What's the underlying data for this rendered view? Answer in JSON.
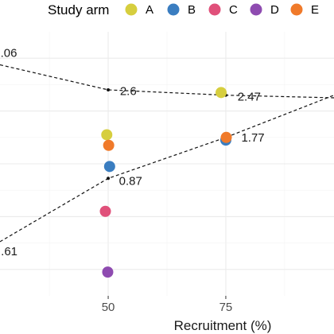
{
  "chart_data": {
    "type": "scatter",
    "xlabel": "Recruitment (%)",
    "x_ticks": [
      "50",
      "75"
    ],
    "x_tick_values": [
      50,
      75
    ],
    "xlim": [
      27,
      98
    ],
    "ylim": [
      0,
      10
    ],
    "grid": true,
    "legend": {
      "title": "Study arm",
      "placement": "top",
      "entries": [
        {
          "label": "A",
          "color": "#D6CE3E"
        },
        {
          "label": "B",
          "color": "#3A7DC0"
        },
        {
          "label": "C",
          "color": "#E0507A"
        },
        {
          "label": "D",
          "color": "#8E4BB0"
        },
        {
          "label": "E",
          "color": "#F07A2A"
        }
      ]
    },
    "series": [
      {
        "name": "A",
        "color": "#D6CE3E",
        "points": [
          {
            "x": 49.7,
            "y": 6.1
          },
          {
            "x": 74.0,
            "y": 7.7
          }
        ]
      },
      {
        "name": "B",
        "color": "#3A7DC0",
        "points": [
          {
            "x": 50.3,
            "y": 4.9
          },
          {
            "x": 75.0,
            "y": 5.9
          }
        ]
      },
      {
        "name": "C",
        "color": "#E0507A",
        "points": [
          {
            "x": 49.4,
            "y": 3.2
          }
        ]
      },
      {
        "name": "D",
        "color": "#8E4BB0",
        "points": [
          {
            "x": 49.9,
            "y": 0.9
          }
        ]
      },
      {
        "name": "E",
        "color": "#F07A2A",
        "points": [
          {
            "x": 50.1,
            "y": 5.7
          },
          {
            "x": 75.1,
            "y": 6.0
          }
        ]
      }
    ],
    "reference_lines": [
      {
        "points": [
          {
            "x": 27,
            "y": 8.75
          },
          {
            "x": 50,
            "y": 7.8
          },
          {
            "x": 75,
            "y": 7.6
          },
          {
            "x": 98,
            "y": 7.5
          }
        ]
      },
      {
        "points": [
          {
            "x": 27,
            "y": 2.05
          },
          {
            "x": 50,
            "y": 4.45
          },
          {
            "x": 75,
            "y": 6.0
          },
          {
            "x": 98,
            "y": 7.6
          }
        ]
      }
    ],
    "annotations": [
      {
        "text": ".06",
        "x": 27.1,
        "y": 9.2
      },
      {
        "text": "2.6",
        "x": 52.5,
        "y": 7.75
      },
      {
        "text": "2.47",
        "x": 77.5,
        "y": 7.55
      },
      {
        "text": "1.77",
        "x": 78.3,
        "y": 6.0
      },
      {
        "text": "0.87",
        "x": 52.3,
        "y": 4.35
      },
      {
        "text": ".61",
        "x": 27.2,
        "y": 1.68
      }
    ],
    "markers": [
      {
        "x": 50,
        "y": 7.8
      },
      {
        "x": 75,
        "y": 7.6
      },
      {
        "x": 50,
        "y": 4.45
      },
      {
        "x": 75,
        "y": 6.0
      }
    ]
  }
}
